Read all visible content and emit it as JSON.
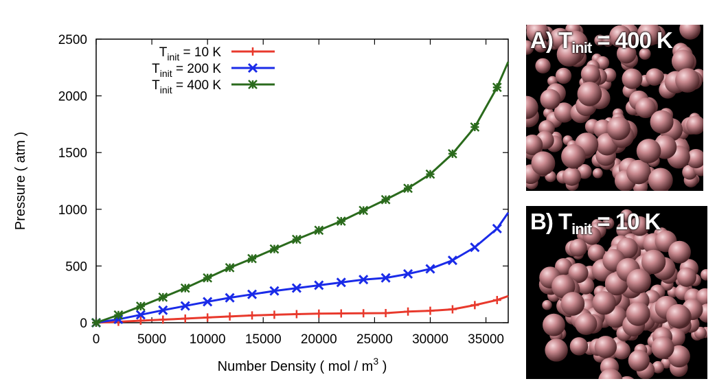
{
  "chart_data": {
    "type": "line",
    "xlabel": "Number Density ( mol / m",
    "xlabel_sup": "3",
    "xlabel_end": " )",
    "ylabel": "Pressure ( atm )",
    "xlim": [
      0,
      37000
    ],
    "ylim": [
      0,
      2500
    ],
    "xticks": [
      "0",
      "5000",
      "10000",
      "15000",
      "20000",
      "25000",
      "30000",
      "35000"
    ],
    "yticks": [
      "0",
      "500",
      "1000",
      "1500",
      "2000",
      "2500"
    ],
    "legend_position": "top-left",
    "grid": false,
    "series": [
      {
        "name": "T",
        "name_sub": "init",
        "name_end": " = 10 K",
        "color": "#e8392c",
        "marker": "plus",
        "x": [
          0,
          2000,
          4000,
          6000,
          8000,
          10000,
          12000,
          14000,
          16000,
          18000,
          20000,
          22000,
          24000,
          26000,
          28000,
          30000,
          32000,
          34000,
          36000,
          37000
        ],
        "y": [
          0,
          8,
          18,
          27,
          36,
          46,
          55,
          64,
          70,
          76,
          80,
          82,
          83,
          85,
          98,
          105,
          118,
          155,
          200,
          235
        ]
      },
      {
        "name": "T",
        "name_sub": "init",
        "name_end": " = 200 K",
        "color": "#1a2be8",
        "marker": "x",
        "x": [
          0,
          2000,
          4000,
          6000,
          8000,
          10000,
          12000,
          14000,
          16000,
          18000,
          20000,
          22000,
          24000,
          26000,
          28000,
          30000,
          32000,
          34000,
          36000,
          37000
        ],
        "y": [
          0,
          30,
          70,
          110,
          148,
          185,
          220,
          250,
          280,
          305,
          330,
          355,
          380,
          395,
          430,
          475,
          550,
          665,
          830,
          970
        ]
      },
      {
        "name": "T",
        "name_sub": "init",
        "name_end": " = 400 K",
        "color": "#2a6a1c",
        "marker": "star",
        "x": [
          0,
          2000,
          4000,
          6000,
          8000,
          10000,
          12000,
          14000,
          16000,
          18000,
          20000,
          22000,
          24000,
          26000,
          28000,
          30000,
          32000,
          34000,
          36000,
          37000
        ],
        "y": [
          0,
          68,
          145,
          225,
          305,
          395,
          485,
          565,
          650,
          735,
          815,
          895,
          990,
          1085,
          1185,
          1310,
          1490,
          1725,
          2075,
          2300
        ]
      }
    ]
  },
  "panels": {
    "a": {
      "prefix": "A) T",
      "sub": "init",
      "suffix": " = 400 K"
    },
    "b": {
      "prefix": "B) T",
      "sub": "init",
      "suffix": " = 10 K"
    }
  }
}
